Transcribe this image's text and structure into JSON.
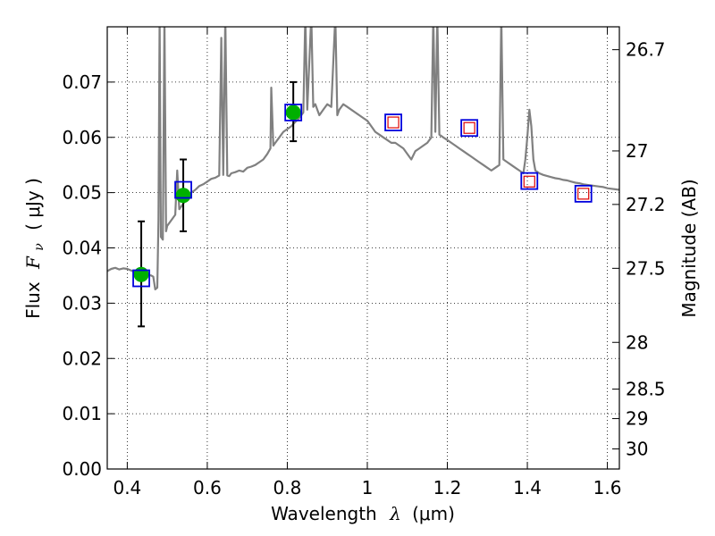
{
  "chart_data": {
    "type": "scatter",
    "title": "",
    "xlabel": {
      "prefix": "Wavelength",
      "symbol": "λ",
      "unit": "(μm)"
    },
    "ylabel": {
      "prefix": "Flux",
      "symbol": "F",
      "subscript": "ν",
      "unit": "( μJy )"
    },
    "y2label": "Magnitude (AB)",
    "xlim": [
      0.35,
      1.63
    ],
    "ylim": [
      0.0,
      0.08
    ],
    "grid": true,
    "x_ticks": [
      {
        "value": 0.4,
        "label": "0.4"
      },
      {
        "value": 0.6,
        "label": "0.6"
      },
      {
        "value": 0.8,
        "label": "0.8"
      },
      {
        "value": 1.0,
        "label": "1"
      },
      {
        "value": 1.2,
        "label": "1.2"
      },
      {
        "value": 1.4,
        "label": "1.4"
      },
      {
        "value": 1.6,
        "label": "1.6"
      }
    ],
    "y_ticks": [
      {
        "value": 0.0,
        "label": "0.00"
      },
      {
        "value": 0.01,
        "label": "0.01"
      },
      {
        "value": 0.02,
        "label": "0.02"
      },
      {
        "value": 0.03,
        "label": "0.03"
      },
      {
        "value": 0.04,
        "label": "0.04"
      },
      {
        "value": 0.05,
        "label": "0.05"
      },
      {
        "value": 0.06,
        "label": "0.06"
      },
      {
        "value": 0.07,
        "label": "0.07"
      }
    ],
    "mag_ticks": [
      {
        "mag": 26.7,
        "label": "26.7"
      },
      {
        "mag": 27.0,
        "label": "27"
      },
      {
        "mag": 27.2,
        "label": "27.2"
      },
      {
        "mag": 27.5,
        "label": "27.5"
      },
      {
        "mag": 28.0,
        "label": "28"
      },
      {
        "mag": 28.5,
        "label": "28.5"
      },
      {
        "mag": 29.0,
        "label": "29"
      },
      {
        "mag": 30.0,
        "label": "30"
      }
    ],
    "series": [
      {
        "kind": "spectrum",
        "color": "#808080",
        "points": [
          [
            0.35,
            0.0358
          ],
          [
            0.36,
            0.0362
          ],
          [
            0.37,
            0.0364
          ],
          [
            0.38,
            0.0361
          ],
          [
            0.39,
            0.0363
          ],
          [
            0.4,
            0.0362
          ],
          [
            0.41,
            0.0359
          ],
          [
            0.42,
            0.0356
          ],
          [
            0.43,
            0.0355
          ],
          [
            0.44,
            0.0352
          ],
          [
            0.45,
            0.0351
          ],
          [
            0.46,
            0.035
          ],
          [
            0.465,
            0.0348
          ],
          [
            0.47,
            0.0325
          ],
          [
            0.475,
            0.0328
          ],
          [
            0.478,
            0.045
          ],
          [
            0.481,
            0.082
          ],
          [
            0.484,
            0.042
          ],
          [
            0.489,
            0.0415
          ],
          [
            0.493,
            0.082
          ],
          [
            0.497,
            0.043
          ],
          [
            0.5,
            0.044
          ],
          [
            0.51,
            0.045
          ],
          [
            0.52,
            0.046
          ],
          [
            0.525,
            0.054
          ],
          [
            0.53,
            0.047
          ],
          [
            0.54,
            0.048
          ],
          [
            0.55,
            0.049
          ],
          [
            0.56,
            0.05
          ],
          [
            0.57,
            0.0505
          ],
          [
            0.58,
            0.0512
          ],
          [
            0.59,
            0.0515
          ],
          [
            0.6,
            0.052
          ],
          [
            0.61,
            0.0525
          ],
          [
            0.62,
            0.0527
          ],
          [
            0.63,
            0.0531
          ],
          [
            0.635,
            0.078
          ],
          [
            0.64,
            0.0532
          ],
          [
            0.645,
            0.082
          ],
          [
            0.65,
            0.0531
          ],
          [
            0.655,
            0.053
          ],
          [
            0.66,
            0.0535
          ],
          [
            0.67,
            0.0537
          ],
          [
            0.68,
            0.054
          ],
          [
            0.69,
            0.0538
          ],
          [
            0.7,
            0.0545
          ],
          [
            0.71,
            0.0547
          ],
          [
            0.72,
            0.055
          ],
          [
            0.73,
            0.0555
          ],
          [
            0.74,
            0.056
          ],
          [
            0.75,
            0.057
          ],
          [
            0.758,
            0.058
          ],
          [
            0.76,
            0.069
          ],
          [
            0.765,
            0.0585
          ],
          [
            0.77,
            0.059
          ],
          [
            0.78,
            0.06
          ],
          [
            0.79,
            0.061
          ],
          [
            0.8,
            0.0615
          ],
          [
            0.81,
            0.062
          ],
          [
            0.82,
            0.0628
          ],
          [
            0.83,
            0.0635
          ],
          [
            0.84,
            0.0645
          ],
          [
            0.845,
            0.082
          ],
          [
            0.85,
            0.065
          ],
          [
            0.86,
            0.082
          ],
          [
            0.865,
            0.0655
          ],
          [
            0.87,
            0.066
          ],
          [
            0.88,
            0.064
          ],
          [
            0.89,
            0.065
          ],
          [
            0.9,
            0.066
          ],
          [
            0.91,
            0.0655
          ],
          [
            0.92,
            0.082
          ],
          [
            0.925,
            0.064
          ],
          [
            0.93,
            0.065
          ],
          [
            0.94,
            0.066
          ],
          [
            0.95,
            0.0655
          ],
          [
            0.96,
            0.065
          ],
          [
            0.97,
            0.0645
          ],
          [
            0.98,
            0.064
          ],
          [
            0.99,
            0.0635
          ],
          [
            1.0,
            0.063
          ],
          [
            1.01,
            0.062
          ],
          [
            1.02,
            0.061
          ],
          [
            1.03,
            0.0605
          ],
          [
            1.04,
            0.06
          ],
          [
            1.05,
            0.0595
          ],
          [
            1.06,
            0.059
          ],
          [
            1.07,
            0.059
          ],
          [
            1.08,
            0.0585
          ],
          [
            1.09,
            0.058
          ],
          [
            1.1,
            0.057
          ],
          [
            1.11,
            0.056
          ],
          [
            1.12,
            0.0575
          ],
          [
            1.13,
            0.058
          ],
          [
            1.14,
            0.0585
          ],
          [
            1.15,
            0.059
          ],
          [
            1.16,
            0.06
          ],
          [
            1.165,
            0.082
          ],
          [
            1.17,
            0.061
          ],
          [
            1.175,
            0.082
          ],
          [
            1.18,
            0.0605
          ],
          [
            1.19,
            0.06
          ],
          [
            1.2,
            0.0595
          ],
          [
            1.21,
            0.059
          ],
          [
            1.22,
            0.0585
          ],
          [
            1.23,
            0.058
          ],
          [
            1.24,
            0.0575
          ],
          [
            1.25,
            0.057
          ],
          [
            1.26,
            0.0565
          ],
          [
            1.27,
            0.056
          ],
          [
            1.28,
            0.0555
          ],
          [
            1.29,
            0.055
          ],
          [
            1.3,
            0.0545
          ],
          [
            1.31,
            0.054
          ],
          [
            1.32,
            0.0545
          ],
          [
            1.33,
            0.055
          ],
          [
            1.335,
            0.082
          ],
          [
            1.34,
            0.056
          ],
          [
            1.35,
            0.0555
          ],
          [
            1.36,
            0.055
          ],
          [
            1.37,
            0.0545
          ],
          [
            1.38,
            0.054
          ],
          [
            1.39,
            0.0535
          ],
          [
            1.395,
            0.056
          ],
          [
            1.4,
            0.06
          ],
          [
            1.405,
            0.065
          ],
          [
            1.41,
            0.062
          ],
          [
            1.415,
            0.056
          ],
          [
            1.42,
            0.054
          ],
          [
            1.43,
            0.0535
          ],
          [
            1.44,
            0.0532
          ],
          [
            1.45,
            0.053
          ],
          [
            1.46,
            0.0528
          ],
          [
            1.47,
            0.0526
          ],
          [
            1.48,
            0.0525
          ],
          [
            1.49,
            0.0523
          ],
          [
            1.5,
            0.0522
          ],
          [
            1.51,
            0.052
          ],
          [
            1.52,
            0.0518
          ],
          [
            1.53,
            0.0517
          ],
          [
            1.54,
            0.0515
          ],
          [
            1.55,
            0.0514
          ],
          [
            1.56,
            0.0513
          ],
          [
            1.57,
            0.0512
          ],
          [
            1.58,
            0.0511
          ],
          [
            1.59,
            0.051
          ],
          [
            1.6,
            0.0508
          ],
          [
            1.61,
            0.0507
          ],
          [
            1.62,
            0.0506
          ],
          [
            1.63,
            0.0505
          ]
        ]
      },
      {
        "kind": "observed",
        "marker": "circle",
        "color": "#00b000",
        "error_color": "#000000",
        "points": [
          {
            "x": 0.435,
            "y": 0.0352,
            "ylow": 0.0258,
            "yhigh": 0.0448
          },
          {
            "x": 0.54,
            "y": 0.0495,
            "ylow": 0.043,
            "yhigh": 0.056
          },
          {
            "x": 0.815,
            "y": 0.0645,
            "ylow": 0.0593,
            "yhigh": 0.07
          }
        ]
      },
      {
        "kind": "model-photometry",
        "marker": "square",
        "color": "#0000dd",
        "points": [
          {
            "x": 0.435,
            "y": 0.0345
          },
          {
            "x": 0.54,
            "y": 0.0505
          },
          {
            "x": 0.815,
            "y": 0.0645
          },
          {
            "x": 1.065,
            "y": 0.0627
          },
          {
            "x": 1.255,
            "y": 0.0617
          },
          {
            "x": 1.405,
            "y": 0.0521
          },
          {
            "x": 1.54,
            "y": 0.0498
          }
        ]
      },
      {
        "kind": "predicted",
        "marker": "small-square",
        "color": "#dd0000",
        "points": [
          {
            "x": 1.065,
            "y": 0.0627
          },
          {
            "x": 1.255,
            "y": 0.0617
          },
          {
            "x": 1.405,
            "y": 0.052
          },
          {
            "x": 1.54,
            "y": 0.0498
          }
        ]
      }
    ]
  }
}
